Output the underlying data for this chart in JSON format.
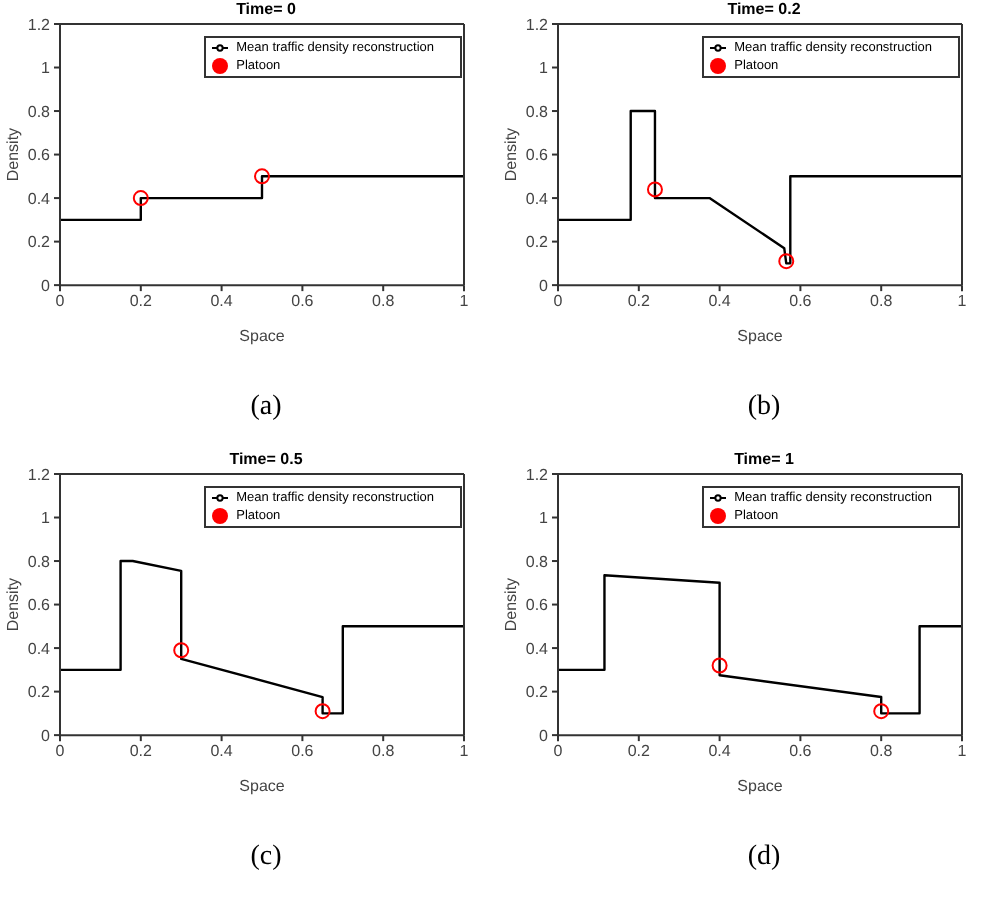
{
  "chart_data": [
    {
      "type": "line",
      "title": "Time= 0",
      "xlabel": "Space",
      "ylabel": "Density",
      "annotations": [
        "(a)"
      ],
      "xlim": [
        0,
        1
      ],
      "xticks": [
        0,
        0.2,
        0.4,
        0.6,
        0.8,
        1
      ],
      "ylim": [
        0,
        1.2
      ],
      "yticks": [
        0,
        0.2,
        0.4,
        0.6,
        0.8,
        1,
        1.2
      ],
      "legend": "top right",
      "series": [
        {
          "name": "Mean traffic density reconstruction",
          "type": "line",
          "color": "#000000",
          "marker": "none",
          "x": [
            0,
            0.2,
            0.2,
            0.5,
            0.5,
            1
          ],
          "values": [
            0.3,
            0.3,
            0.4,
            0.4,
            0.5,
            0.5
          ]
        },
        {
          "name": "Platoon",
          "type": "scatter",
          "color": "#ff0000",
          "marker": "circle",
          "x": [
            0.2,
            0.5
          ],
          "values": [
            0.4,
            0.5
          ]
        }
      ]
    },
    {
      "type": "line",
      "title": "Time= 0.2",
      "xlabel": "Space",
      "ylabel": "Density",
      "annotations": [
        "(b)"
      ],
      "xlim": [
        0,
        1
      ],
      "xticks": [
        0,
        0.2,
        0.4,
        0.6,
        0.8,
        1
      ],
      "ylim": [
        0,
        1.2
      ],
      "yticks": [
        0,
        0.2,
        0.4,
        0.6,
        0.8,
        1,
        1.2
      ],
      "legend": "top right",
      "series": [
        {
          "name": "Mean traffic density reconstruction",
          "type": "line",
          "color": "#000000",
          "marker": "none",
          "x": [
            0,
            0.18,
            0.18,
            0.24,
            0.24,
            0.375,
            0.56,
            0.565,
            0.575,
            0.575,
            1
          ],
          "values": [
            0.3,
            0.3,
            0.8,
            0.8,
            0.4,
            0.4,
            0.17,
            0.1,
            0.1,
            0.5,
            0.5
          ]
        },
        {
          "name": "Platoon",
          "type": "scatter",
          "color": "#ff0000",
          "marker": "circle",
          "x": [
            0.24,
            0.565
          ],
          "values": [
            0.44,
            0.11
          ]
        }
      ]
    },
    {
      "type": "line",
      "title": "Time= 0.5",
      "xlabel": "Space",
      "ylabel": "Density",
      "annotations": [
        "(c)"
      ],
      "xlim": [
        0,
        1
      ],
      "xticks": [
        0,
        0.2,
        0.4,
        0.6,
        0.8,
        1
      ],
      "ylim": [
        0,
        1.2
      ],
      "yticks": [
        0,
        0.2,
        0.4,
        0.6,
        0.8,
        1,
        1.2
      ],
      "legend": "top right",
      "series": [
        {
          "name": "Mean traffic density reconstruction",
          "type": "line",
          "color": "#000000",
          "marker": "none",
          "x": [
            0,
            0.15,
            0.15,
            0.18,
            0.3,
            0.3,
            0.65,
            0.65,
            0.7,
            0.7,
            1
          ],
          "values": [
            0.3,
            0.3,
            0.8,
            0.8,
            0.755,
            0.35,
            0.175,
            0.1,
            0.1,
            0.5,
            0.5
          ]
        },
        {
          "name": "Platoon",
          "type": "scatter",
          "color": "#ff0000",
          "marker": "circle",
          "x": [
            0.3,
            0.65
          ],
          "values": [
            0.39,
            0.11
          ]
        }
      ]
    },
    {
      "type": "line",
      "title": "Time= 1",
      "xlabel": "Space",
      "ylabel": "Density",
      "annotations": [
        "(d)"
      ],
      "xlim": [
        0,
        1
      ],
      "xticks": [
        0,
        0.2,
        0.4,
        0.6,
        0.8,
        1
      ],
      "ylim": [
        0,
        1.2
      ],
      "yticks": [
        0,
        0.2,
        0.4,
        0.6,
        0.8,
        1,
        1.2
      ],
      "legend": "top right",
      "series": [
        {
          "name": "Mean traffic density reconstruction",
          "type": "line",
          "color": "#000000",
          "marker": "none",
          "x": [
            0,
            0.115,
            0.115,
            0.4,
            0.4,
            0.8,
            0.8,
            0.895,
            0.895,
            1
          ],
          "values": [
            0.3,
            0.3,
            0.735,
            0.7,
            0.275,
            0.175,
            0.1,
            0.1,
            0.5,
            0.5
          ]
        },
        {
          "name": "Platoon",
          "type": "scatter",
          "color": "#ff0000",
          "marker": "circle",
          "x": [
            0.4,
            0.8
          ],
          "values": [
            0.32,
            0.11
          ]
        }
      ]
    }
  ]
}
